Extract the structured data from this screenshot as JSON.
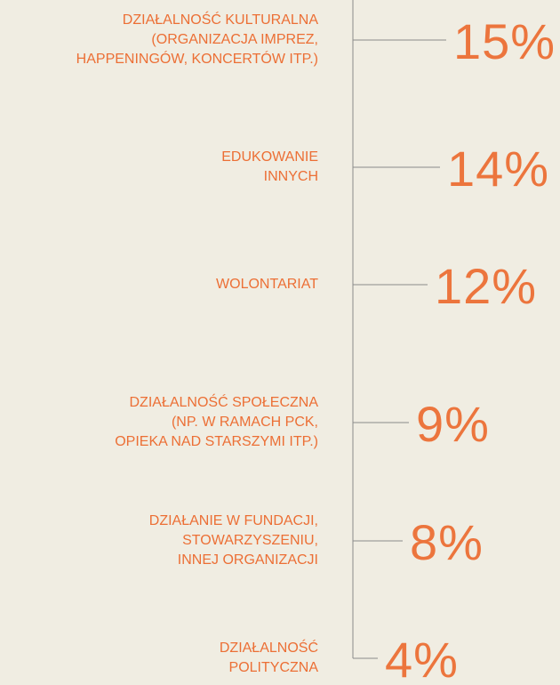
{
  "chart_data": {
    "type": "bar",
    "color": "#ec6f35",
    "categories": [
      "DZIAŁALNOŚĆ KULTURALNA\n(ORGANIZACJA IMPREZ,\nHAPPENINGÓW, KONCERTÓW ITP.)",
      "EDUKOWANIE\nINNYCH",
      "WOLONTARIAT",
      "DZIAŁALNOŚĆ SPOŁECZNA\n(NP. W RAMACH PCK,\nOPIEKA NAD STARSZYMI ITP.)",
      "DZIAŁANIE W FUNDACJI,\nSTOWARZYSZENIU,\nINNEJ ORGANIZACJI",
      "DZIAŁALNOŚĆ\nPOLITYCZNA"
    ],
    "values": [
      15,
      14,
      12,
      9,
      8,
      4
    ],
    "value_labels": [
      "15%",
      "14%",
      "12%",
      "9%",
      "8%",
      "4%"
    ]
  }
}
